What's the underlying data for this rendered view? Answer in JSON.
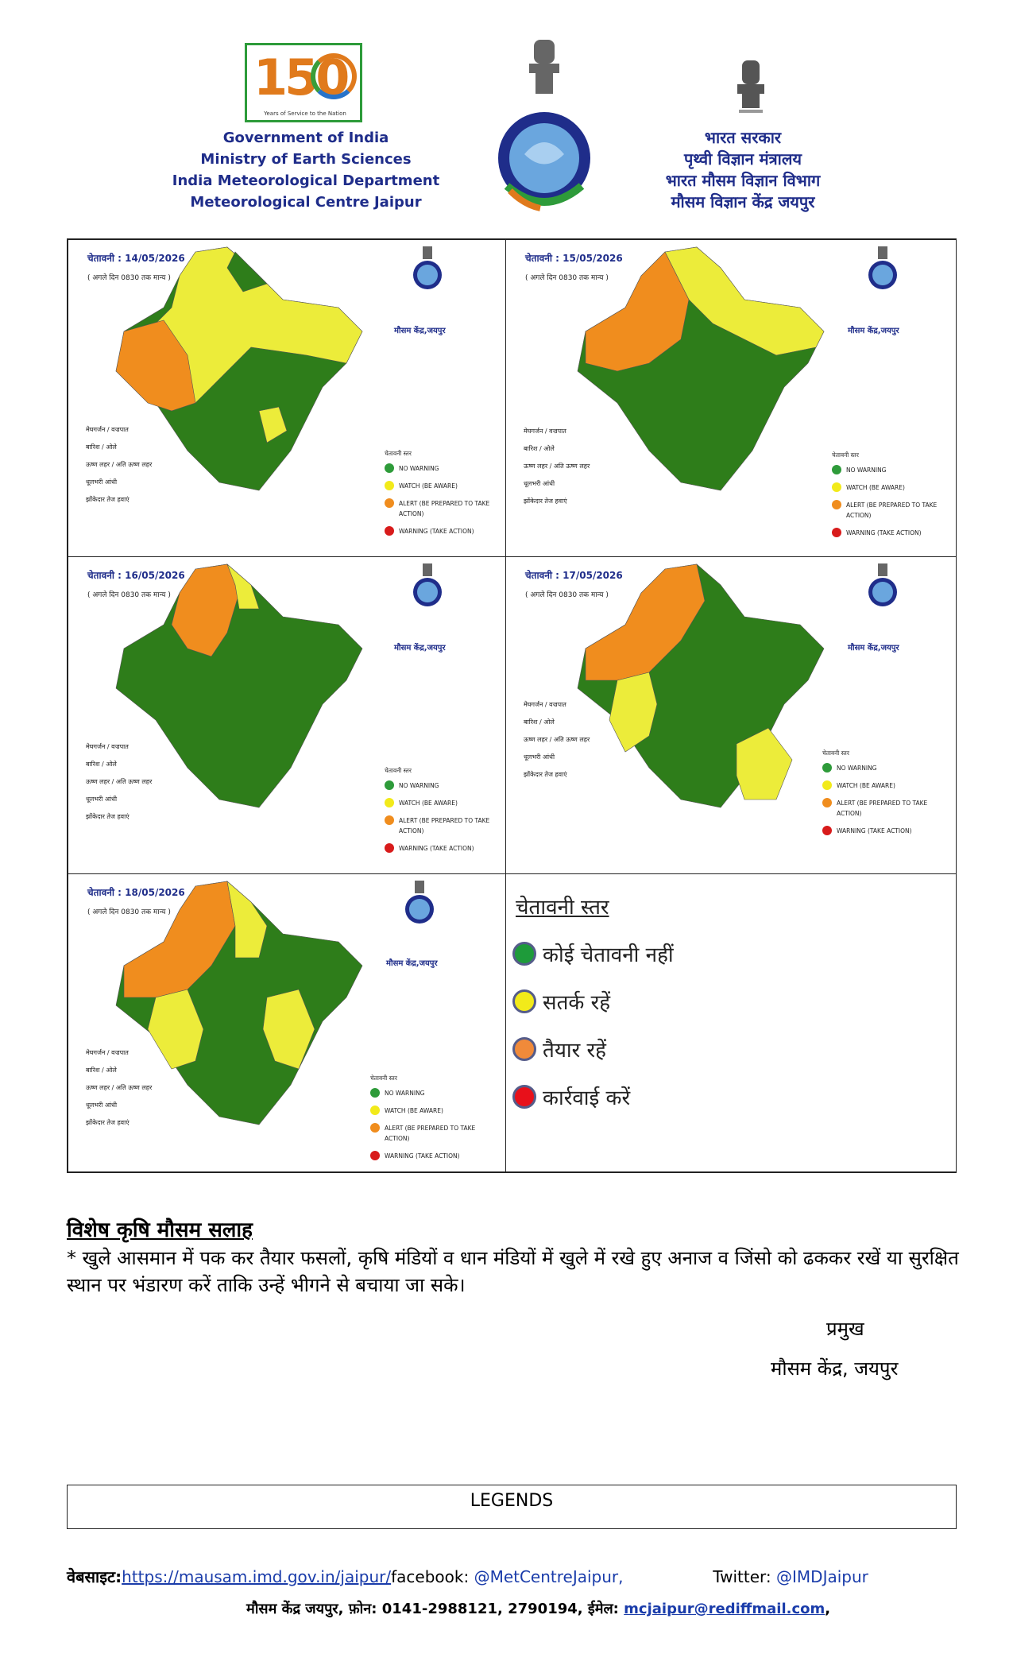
{
  "header": {
    "logo150_text": "150",
    "logo150_tagline": "Years of Service to the Nation",
    "english": [
      "Government of India",
      "Ministry of Earth Sciences",
      "India Meteorological Department",
      "Meteorological Centre Jaipur"
    ],
    "hindi": [
      "भारत सरकार",
      "पृथ्वी विज्ञान मंत्रालय",
      "भारत मौसम विज्ञान विभाग",
      "मौसम विज्ञान केंद्र जयपुर"
    ]
  },
  "maps": [
    {
      "title": "चेतावनी : 14/05/2026",
      "subtitle": "( अगले दिन 0830 तक मान्य )",
      "centre": "मौसम केंद्र,जयपुर"
    },
    {
      "title": "चेतावनी : 15/05/2026",
      "subtitle": "( अगले दिन 0830 तक मान्य )",
      "centre": "मौसम केंद्र,जयपुर"
    },
    {
      "title": "चेतावनी : 16/05/2026",
      "subtitle": "( अगले दिन 0830 तक मान्य )",
      "centre": "मौसम केंद्र,जयपुर"
    },
    {
      "title": "चेतावनी : 17/05/2026",
      "subtitle": "( अगले दिन 0830 तक मान्य )",
      "centre": "मौसम केंद्र,जयपुर"
    },
    {
      "title": "चेतावनी : 18/05/2026",
      "subtitle": "( अगले दिन 0830 तक मान्य )",
      "centre": "मौसम केंद्र,जयपुर"
    }
  ],
  "map_legend": {
    "phenomena": [
      "मेघगर्जन / वज्रपात",
      "बारिश / ओले",
      "ऊष्ण लहर / अति ऊष्ण लहर",
      "धूलभरी आंधी",
      "झोंकेदार तेज हवाएं"
    ],
    "level_title": "चेतावनी स्तर",
    "levels": [
      "NO WARNING",
      "WATCH (BE AWARE)",
      "ALERT (BE PREPARED TO TAKE ACTION)",
      "WARNING (TAKE ACTION)"
    ]
  },
  "big_legend": {
    "title": "चेतावनी स्तर",
    "items": [
      {
        "label": "कोई चेतावनी नहीं",
        "color": "#1e9b3a"
      },
      {
        "label": "सतर्क रहें",
        "color": "#f2ea1a"
      },
      {
        "label": "तैयार रहें",
        "color": "#f08a3a"
      },
      {
        "label": "कार्रवाई करें",
        "color": "#e8101a"
      }
    ]
  },
  "colors": {
    "green": "#2e7d1a",
    "yellow": "#ecec3a",
    "orange": "#f08d1e",
    "red": "#d81b1b",
    "navy": "#1f2d8a"
  },
  "advisory": {
    "title": "विशेष कृषि मौसम सलाह",
    "text": "* खुले आसमान में पक कर तैयार फसलों, कृषि मंडियों व धान मंडियों में खुले में रखे हुए अनाज व जिंसो को ढककर रखें या सुरक्षित स्थान पर भंडारण करें ताकि उन्हें भीगने से बचाया जा सके।",
    "sign_title": "प्रमुख",
    "sign_office": "मौसम केंद्र, जयपुर"
  },
  "legends_label": "LEGENDS",
  "footer": {
    "website_label": "वेबसाइट:",
    "website_url": "https://mausam.imd.gov.in/jaipur/",
    "facebook_label": "facebook:",
    "facebook_handle": "@MetCentreJaipur,",
    "twitter_label": "Twitter:",
    "twitter_handle": "@IMDJaipur",
    "contact": "मौसम केंद्र जयपुर, फ़ोन: 0141-2988121, 2790194, ईमेल:",
    "email": "mcjaipur@rediffmail.com",
    "email_suffix": ","
  }
}
